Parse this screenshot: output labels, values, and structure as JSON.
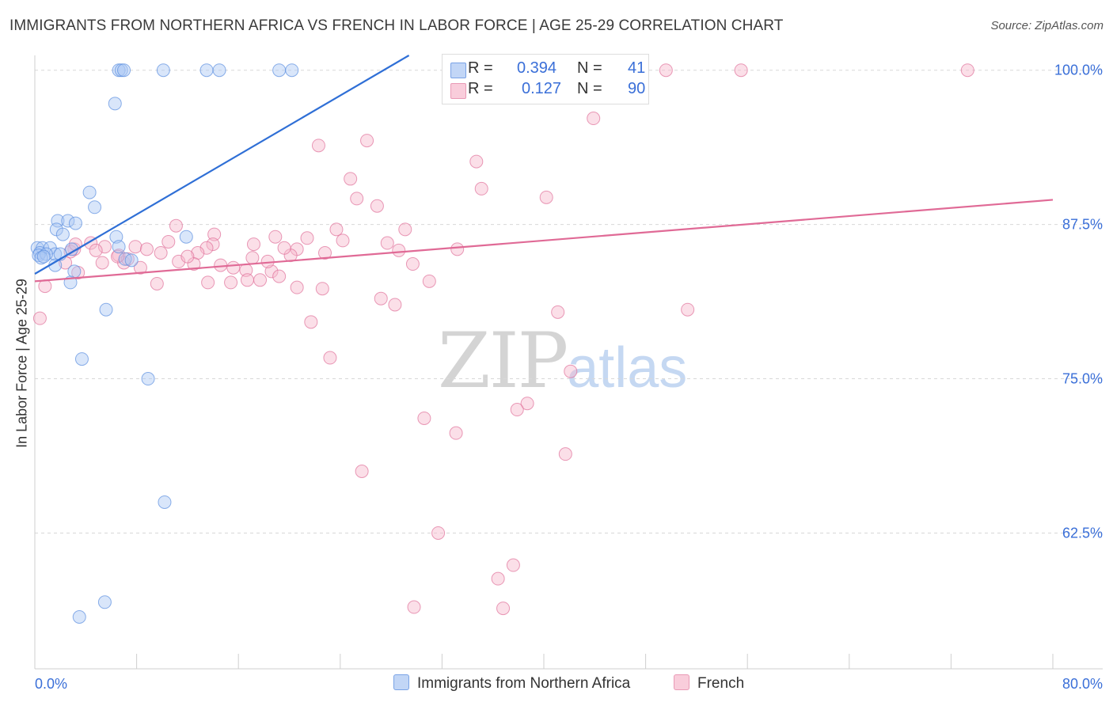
{
  "title": "IMMIGRANTS FROM NORTHERN AFRICA VS FRENCH IN LABOR FORCE | AGE 25-29 CORRELATION CHART",
  "source": "Source: ZipAtlas.com",
  "watermark": {
    "zip": "ZIP",
    "atlas": "atlas"
  },
  "colors": {
    "blue": "#5b8fe0",
    "blue_fill": "#aac8f4",
    "blue_line": "#2f6fd6",
    "pink": "#e0709a",
    "pink_fill": "#f6b8cc",
    "pink_line": "#e06a96",
    "grid": "#d8d8d8",
    "axis_text": "#3a6fd8"
  },
  "legend_top": [
    {
      "r_label": "R =",
      "r_value": "0.394",
      "n_label": "N =",
      "n_value": "41"
    },
    {
      "r_label": "R =",
      "r_value": "0.127",
      "n_label": "N =",
      "n_value": "90"
    }
  ],
  "legend_bottom": [
    "Immigrants from Northern Africa",
    "French"
  ],
  "chart_data": {
    "type": "scatter",
    "title": "IMMIGRANTS FROM NORTHERN AFRICA VS FRENCH IN LABOR FORCE | AGE 25-29 CORRELATION CHART",
    "xlabel": "",
    "ylabel": "In Labor Force | Age 25-29",
    "xlim": [
      0,
      80
    ],
    "ylim": [
      51.5,
      101.2
    ],
    "x_tick_labels": [
      "0.0%",
      "80.0%"
    ],
    "y_ticks": [
      62.5,
      75.0,
      87.5,
      100.0
    ],
    "y_tick_labels": [
      "62.5%",
      "75.0%",
      "87.5%",
      "100.0%"
    ],
    "grid": true,
    "legend_position": "top-center",
    "series": [
      {
        "name": "Immigrants from Northern Africa",
        "R": 0.394,
        "N": 41,
        "trend": {
          "x0": 0.0,
          "y0": 83.5,
          "x1": 29.4,
          "y1": 101.2
        },
        "points": [
          [
            6.6,
            100
          ],
          [
            6.8,
            100
          ],
          [
            7.0,
            100
          ],
          [
            10.1,
            100
          ],
          [
            13.5,
            100
          ],
          [
            14.5,
            100
          ],
          [
            19.2,
            100
          ],
          [
            20.2,
            100
          ],
          [
            6.3,
            97.3
          ],
          [
            4.3,
            90.1
          ],
          [
            4.7,
            88.9
          ],
          [
            1.8,
            87.8
          ],
          [
            2.6,
            87.8
          ],
          [
            3.2,
            87.6
          ],
          [
            1.7,
            87.1
          ],
          [
            2.2,
            86.7
          ],
          [
            6.4,
            86.5
          ],
          [
            11.9,
            86.5
          ],
          [
            0.2,
            85.6
          ],
          [
            0.6,
            85.6
          ],
          [
            1.2,
            85.6
          ],
          [
            1.6,
            85.1
          ],
          [
            2.0,
            85.1
          ],
          [
            2.9,
            85.5
          ],
          [
            6.6,
            85.7
          ],
          [
            0.4,
            85.2
          ],
          [
            0.3,
            85.0
          ],
          [
            0.9,
            85.1
          ],
          [
            0.5,
            84.8
          ],
          [
            0.7,
            84.9
          ],
          [
            7.1,
            84.7
          ],
          [
            7.6,
            84.6
          ],
          [
            1.6,
            84.2
          ],
          [
            3.1,
            83.7
          ],
          [
            2.8,
            82.8
          ],
          [
            5.6,
            80.6
          ],
          [
            3.7,
            76.6
          ],
          [
            8.9,
            75.0
          ],
          [
            10.2,
            65.0
          ],
          [
            5.5,
            56.9
          ],
          [
            3.5,
            55.7
          ]
        ]
      },
      {
        "name": "French",
        "R": 0.127,
        "N": 90,
        "trend": {
          "x0": 0.0,
          "y0": 82.9,
          "x1": 80.0,
          "y1": 89.5
        },
        "points": [
          [
            32.5,
            100
          ],
          [
            34.3,
            100
          ],
          [
            44.5,
            100
          ],
          [
            49.6,
            100
          ],
          [
            55.5,
            100
          ],
          [
            73.3,
            100
          ],
          [
            43.9,
            96.1
          ],
          [
            26.1,
            94.3
          ],
          [
            22.3,
            93.9
          ],
          [
            34.7,
            92.6
          ],
          [
            24.8,
            91.2
          ],
          [
            35.1,
            90.4
          ],
          [
            25.3,
            89.6
          ],
          [
            26.9,
            89.0
          ],
          [
            40.2,
            89.7
          ],
          [
            11.1,
            87.4
          ],
          [
            23.7,
            87.1
          ],
          [
            29.1,
            87.1
          ],
          [
            14.1,
            86.7
          ],
          [
            18.9,
            86.5
          ],
          [
            21.4,
            86.4
          ],
          [
            27.7,
            86.0
          ],
          [
            4.4,
            86.0
          ],
          [
            5.5,
            85.7
          ],
          [
            7.9,
            85.7
          ],
          [
            3.1,
            85.5
          ],
          [
            2.8,
            85.3
          ],
          [
            17.2,
            85.9
          ],
          [
            14.0,
            85.9
          ],
          [
            13.5,
            85.6
          ],
          [
            8.8,
            85.5
          ],
          [
            20.6,
            85.5
          ],
          [
            9.9,
            85.2
          ],
          [
            12.8,
            85.2
          ],
          [
            28.6,
            85.4
          ],
          [
            33.2,
            85.5
          ],
          [
            6.6,
            85.0
          ],
          [
            20.1,
            85.0
          ],
          [
            17.1,
            84.8
          ],
          [
            11.3,
            84.5
          ],
          [
            5.3,
            84.4
          ],
          [
            7.0,
            84.4
          ],
          [
            29.7,
            84.3
          ],
          [
            2.4,
            84.4
          ],
          [
            8.3,
            84.0
          ],
          [
            12.5,
            84.3
          ],
          [
            15.6,
            84.0
          ],
          [
            16.6,
            83.8
          ],
          [
            18.6,
            83.7
          ],
          [
            3.4,
            83.6
          ],
          [
            19.2,
            83.3
          ],
          [
            16.7,
            83.0
          ],
          [
            15.4,
            82.8
          ],
          [
            17.7,
            83.0
          ],
          [
            13.6,
            82.8
          ],
          [
            31.0,
            82.9
          ],
          [
            9.6,
            82.7
          ],
          [
            20.6,
            82.4
          ],
          [
            22.6,
            82.3
          ],
          [
            0.8,
            82.5
          ],
          [
            27.2,
            81.5
          ],
          [
            28.3,
            81.0
          ],
          [
            51.3,
            80.6
          ],
          [
            41.1,
            80.4
          ],
          [
            0.4,
            79.9
          ],
          [
            21.7,
            79.6
          ],
          [
            23.2,
            76.7
          ],
          [
            42.1,
            75.6
          ],
          [
            38.7,
            73.0
          ],
          [
            37.9,
            72.5
          ],
          [
            30.6,
            71.8
          ],
          [
            33.1,
            70.6
          ],
          [
            41.7,
            68.9
          ],
          [
            25.7,
            67.5
          ],
          [
            31.7,
            62.5
          ],
          [
            37.6,
            59.9
          ],
          [
            36.4,
            58.8
          ],
          [
            29.8,
            56.5
          ],
          [
            36.8,
            56.4
          ],
          [
            3.2,
            85.9
          ],
          [
            4.8,
            85.4
          ],
          [
            7.3,
            84.7
          ],
          [
            6.5,
            84.9
          ],
          [
            10.5,
            86.1
          ],
          [
            24.2,
            86.2
          ],
          [
            19.6,
            85.6
          ],
          [
            22.8,
            85.2
          ],
          [
            14.6,
            84.2
          ],
          [
            12.0,
            84.9
          ],
          [
            18.3,
            84.5
          ]
        ]
      }
    ]
  }
}
